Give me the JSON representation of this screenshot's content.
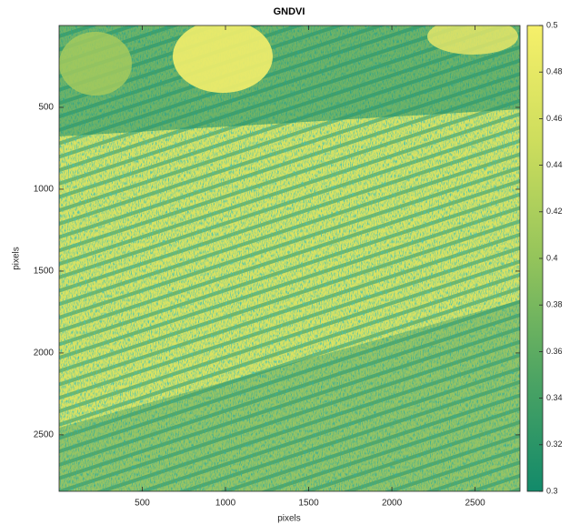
{
  "chart_data": {
    "type": "heatmap",
    "title": "GNDVI",
    "xlabel": "pixels",
    "ylabel": "pixels",
    "xlim": [
      0,
      2770
    ],
    "xticks": [
      500,
      1000,
      1500,
      2000,
      2500
    ],
    "ylim": [
      0,
      2845
    ],
    "yticks": [
      500,
      1000,
      1500,
      2000,
      2500
    ],
    "colorbar": {
      "lim": [
        0.3,
        0.5
      ],
      "ticks": [
        0.3,
        0.32,
        0.34,
        0.36,
        0.38,
        0.4,
        0.42,
        0.44,
        0.46,
        0.48,
        0.5
      ]
    },
    "colormap": [
      "#128a6a",
      "#4fa563",
      "#94c45b",
      "#cddd5d",
      "#f6f06a"
    ]
  }
}
